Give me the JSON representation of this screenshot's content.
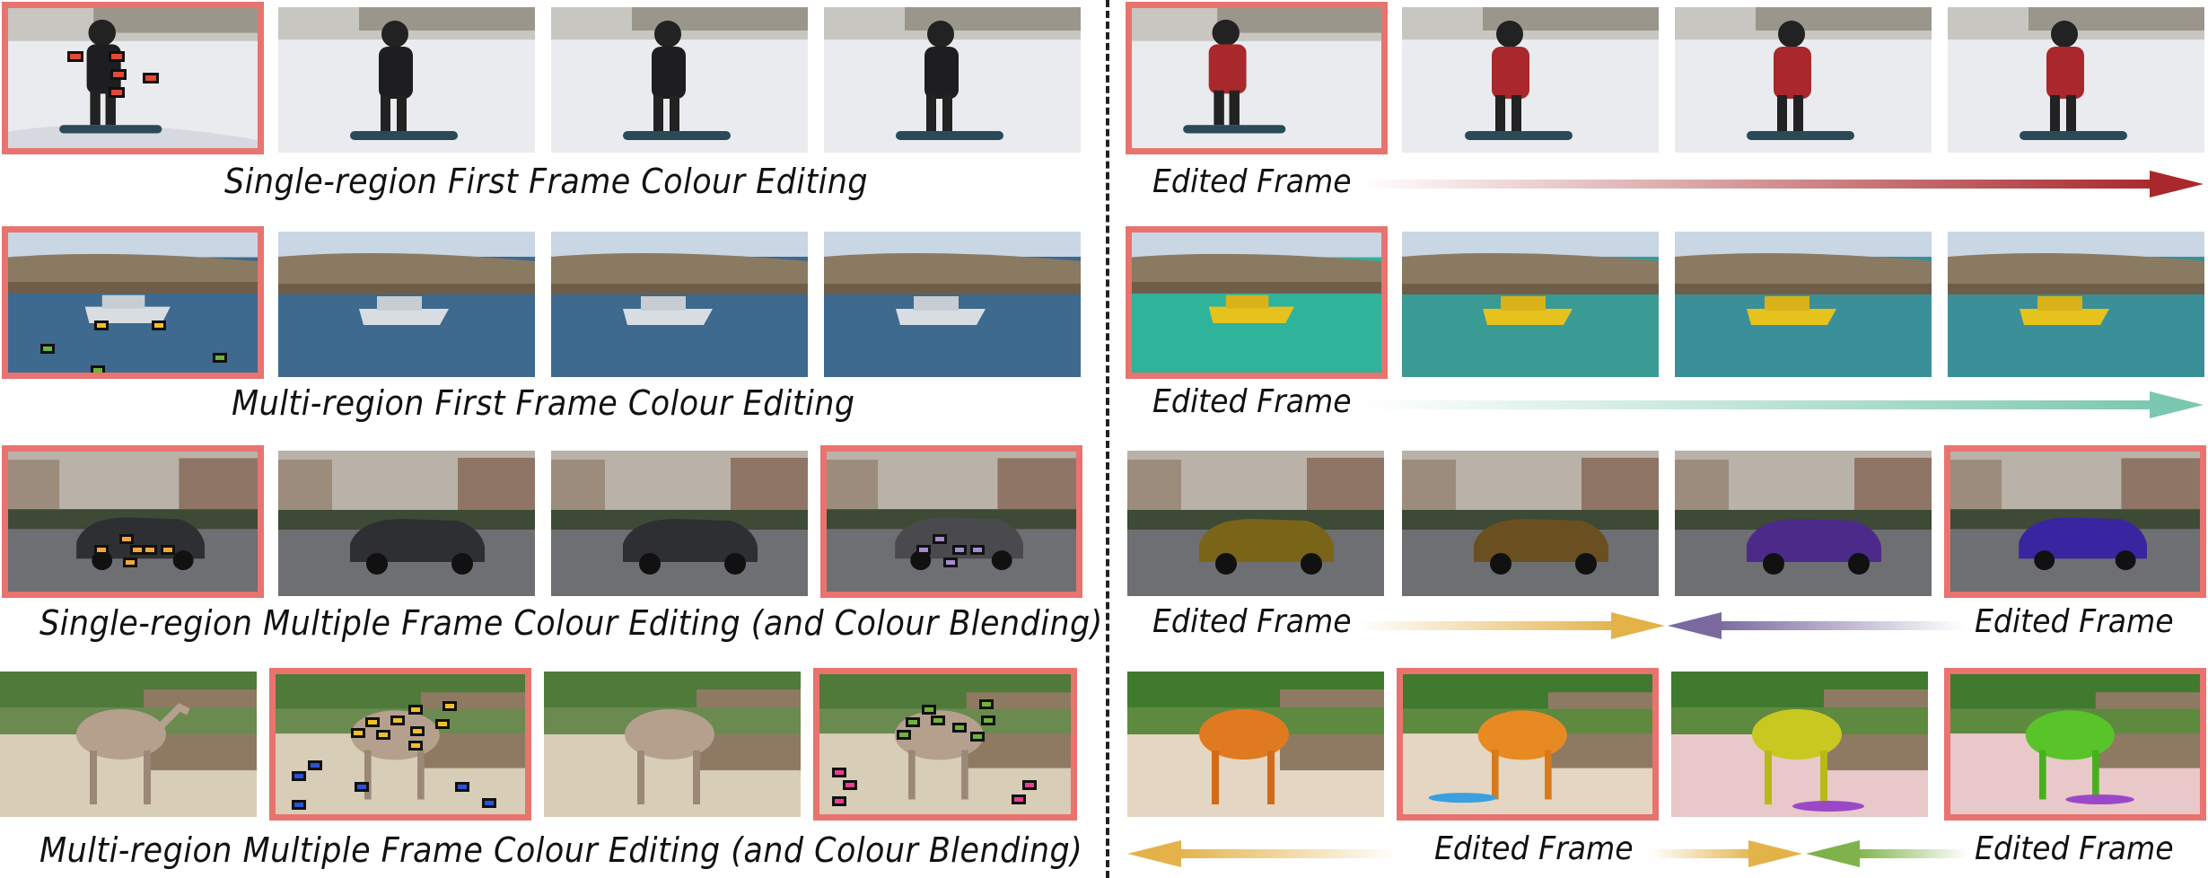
{
  "captions": {
    "row1": "Single-region First Frame Colour Editing",
    "row2": "Multi-region First Frame Colour Editing",
    "row3": "Single-region Multiple Frame Colour Editing (and Colour Blending)",
    "row4": "Multi-region Multiple Frame Colour Editing (and Colour Blending)"
  },
  "edited_label": "Edited Frame",
  "colors": {
    "highlight": "#e8736f",
    "red_edit": "#a8282c",
    "teal_edit": "#7cc7b0",
    "gold_edit": "#e3b34a",
    "purple_edit": "#7a6aa0",
    "green_edit": "#7fb24a",
    "box_red": "#e04a3a",
    "box_yellow": "#f0c02a",
    "box_green": "#72b23a",
    "box_orange": "#f0a93a",
    "box_purple": "#a68bd0",
    "box_blue": "#2a52d8",
    "box_pink": "#e8408a"
  }
}
